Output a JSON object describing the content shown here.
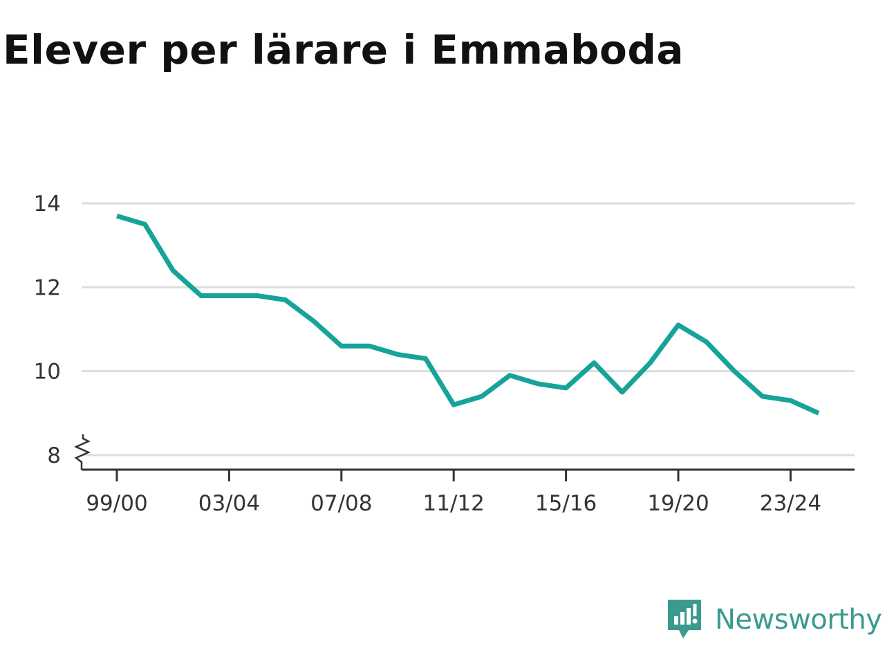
{
  "chart_data": {
    "type": "line",
    "title": "Elever per lärare i Emmaboda",
    "xlabel": "",
    "ylabel": "",
    "x": [
      "99/00",
      "00/01",
      "01/02",
      "02/03",
      "03/04",
      "04/05",
      "05/06",
      "06/07",
      "07/08",
      "08/09",
      "09/10",
      "10/11",
      "11/12",
      "12/13",
      "13/14",
      "14/15",
      "15/16",
      "16/17",
      "17/18",
      "18/19",
      "19/20",
      "20/21",
      "21/22",
      "22/23",
      "23/24",
      "24/25"
    ],
    "values": [
      13.7,
      13.5,
      12.4,
      11.8,
      11.8,
      11.8,
      11.7,
      11.2,
      10.6,
      10.6,
      10.4,
      10.3,
      9.2,
      9.4,
      9.9,
      9.7,
      9.6,
      10.2,
      9.5,
      10.2,
      11.1,
      10.7,
      10.0,
      9.4,
      9.3,
      9.0
    ],
    "x_tick_labels": [
      "99/00",
      "03/04",
      "07/08",
      "11/12",
      "15/16",
      "19/20",
      "23/24"
    ],
    "y_ticks": [
      8,
      10,
      12,
      14
    ],
    "ylim": [
      8,
      14
    ],
    "y_axis_break": true,
    "grid": true,
    "line_color": "#16a39a",
    "grid_color": "#dddddd",
    "axis_color": "#333333"
  },
  "brand": {
    "name": "Newsworthy",
    "icon": "newsworthy-logo-icon",
    "color": "#3a9a8e"
  }
}
